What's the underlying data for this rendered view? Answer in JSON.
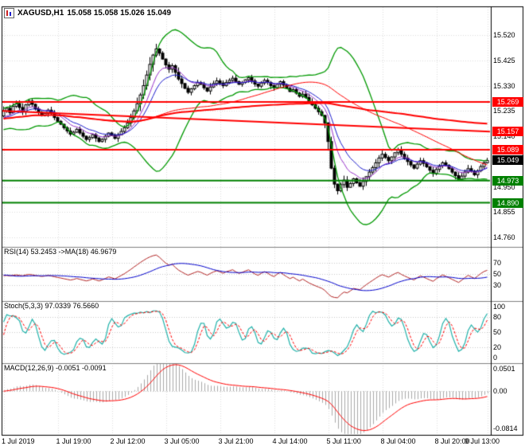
{
  "header": {
    "symbol_period": "XAGUSD,H1",
    "ohlc_text": "15.058 15.058 15.026 15.049"
  },
  "indicator_labels": {
    "rsi": "RSI(14) 53.2453 ->MA(18) 46.9679",
    "stoch": "Stoch(5,3,3) 97.0339 76.5660",
    "macd": "MACD(12,26,9) -0.0051 -0.0091"
  },
  "axis": {
    "price_ticks": [
      "15.520",
      "15.425",
      "15.330",
      "15.235",
      "15.140",
      "15.045",
      "14.950",
      "14.855",
      "14.760"
    ],
    "rsi_ticks": [
      "70",
      "50",
      "30"
    ],
    "stoch_ticks": [
      "100",
      "80",
      "50",
      "20",
      "0"
    ],
    "macd_ticks": [
      "0.0501",
      "0.00",
      "-0.0814"
    ],
    "date_ticks": [
      "1 Jul 2019",
      "1 Jul 19:00",
      "2 Jul 12:00",
      "3 Jul 05:00",
      "3 Jul 21:00",
      "4 Jul 14:00",
      "5 Jul 11:00",
      "8 Jul 04:00",
      "8 Jul 20:00",
      "9 Jul 13:00"
    ]
  },
  "price_boxes": [
    {
      "text": "15.269",
      "value": 15.269,
      "color": "#ff0000"
    },
    {
      "text": "15.157",
      "value": 15.157,
      "color": "#ff0000"
    },
    {
      "text": "15.089",
      "value": 15.089,
      "color": "#ff0000"
    },
    {
      "text": "15.049",
      "value": 15.049,
      "color": "#000000"
    },
    {
      "text": "14.973",
      "value": 14.973,
      "color": "#008000"
    },
    {
      "text": "14.890",
      "value": 14.89,
      "color": "#008000"
    }
  ],
  "colors": {
    "background": "#ffffff",
    "grid": "#dcdcdc",
    "level_grid": "#c8c8c8",
    "candle_up": "#ffffff",
    "candle_down": "#000000",
    "candle_outline": "#000000",
    "bollinger": "#009900",
    "ema_fast": "#9932cc",
    "ema_slow": "#1a1acd",
    "sma_long": "#ff0000",
    "resistance": "#ff0000",
    "support": "#008000",
    "current_price_box": "#000000",
    "rsi_line": "#b22222",
    "rsi_ma": "#0000cc",
    "stoch_main": "#20b2aa",
    "stoch_signal": "#ff0000",
    "macd_histogram": "#a9a9a9",
    "macd_signal": "#ff0000",
    "separator": "#808080",
    "border": "#000000"
  },
  "chart_data": {
    "type": "candlestick",
    "symbol": "XAGUSD",
    "timeframe": "H1",
    "title": "XAGUSD,H1 15.058 15.058 15.026 15.049",
    "last_ohlc": {
      "open": 15.058,
      "high": 15.058,
      "low": 15.026,
      "close": 15.049
    },
    "y_range": [
      14.724,
      15.628
    ],
    "bars_per_x_tick": 17,
    "closes": [
      15.235,
      15.245,
      15.228,
      15.252,
      15.262,
      15.248,
      15.232,
      15.258,
      15.272,
      15.26,
      15.243,
      15.23,
      15.218,
      15.226,
      15.238,
      15.225,
      15.21,
      15.196,
      15.185,
      15.172,
      15.16,
      15.148,
      15.155,
      15.166,
      15.152,
      15.14,
      15.128,
      15.135,
      15.146,
      15.133,
      15.12,
      15.128,
      15.14,
      15.152,
      15.144,
      15.132,
      15.145,
      15.158,
      15.172,
      15.19,
      15.21,
      15.235,
      15.262,
      15.295,
      15.33,
      15.37,
      15.41,
      15.445,
      15.468,
      15.452,
      15.43,
      15.408,
      15.392,
      15.405,
      15.38,
      15.355,
      15.338,
      15.32,
      15.305,
      15.318,
      15.33,
      15.342,
      15.335,
      15.322,
      15.31,
      15.325,
      15.338,
      15.348,
      15.34,
      15.33,
      15.342,
      15.35,
      15.358,
      15.345,
      15.335,
      15.342,
      15.352,
      15.36,
      15.348,
      15.336,
      15.328,
      15.34,
      15.35,
      15.342,
      15.33,
      15.322,
      15.335,
      15.345,
      15.332,
      15.32,
      15.308,
      15.315,
      15.302,
      15.29,
      15.298,
      15.285,
      15.27,
      15.258,
      15.245,
      15.232,
      15.218,
      15.19,
      15.12,
      15.02,
      14.96,
      14.935,
      14.958,
      14.975,
      14.948,
      14.962,
      14.98,
      14.965,
      14.952,
      14.97,
      14.988,
      15.005,
      15.022,
      15.04,
      15.058,
      15.072,
      15.06,
      15.048,
      15.062,
      15.078,
      15.088,
      15.072,
      15.058,
      15.045,
      15.032,
      15.02,
      15.035,
      15.048,
      15.038,
      15.025,
      15.012,
      15.0,
      15.015,
      15.028,
      15.04,
      15.03,
      15.018,
      15.005,
      14.992,
      14.978,
      14.99,
      15.005,
      15.018,
      15.008,
      14.995,
      15.01,
      15.026,
      15.04,
      15.049
    ],
    "levels": {
      "horizontal": [
        {
          "value": 15.269,
          "color": "#ff0000"
        },
        {
          "value": 15.089,
          "color": "#ff0000"
        },
        {
          "value": 14.973,
          "color": "#008000"
        },
        {
          "value": 14.89,
          "color": "#008000"
        }
      ],
      "trend": [
        {
          "from": 15.235,
          "to": 15.157,
          "color": "#ff0000"
        }
      ],
      "current_price": 15.049
    },
    "indicators": {
      "bollinger": {
        "period": 20,
        "deviation": 2
      },
      "moving_averages": [
        {
          "type": "ema",
          "period": 8
        },
        {
          "type": "ema",
          "period": 13
        },
        {
          "type": "sma",
          "period": 55
        },
        {
          "type": "sma",
          "period": 120
        }
      ],
      "rsi": {
        "period": 14,
        "ma_period": 18,
        "current": 53.2453,
        "ma_current": 46.9679,
        "levels": [
          70,
          50,
          30
        ],
        "range": [
          5,
          95
        ]
      },
      "stochastic": {
        "k": 5,
        "d": 3,
        "slowing": 3,
        "current_k": 97.0339,
        "current_d": 76.566,
        "levels": [
          80,
          50,
          20
        ],
        "range": [
          -8,
          108
        ]
      },
      "macd": {
        "fast": 12,
        "slow": 26,
        "signal": 9,
        "current": -0.0051,
        "current_signal": -0.0091,
        "range": [
          -0.092,
          0.058
        ]
      }
    }
  }
}
